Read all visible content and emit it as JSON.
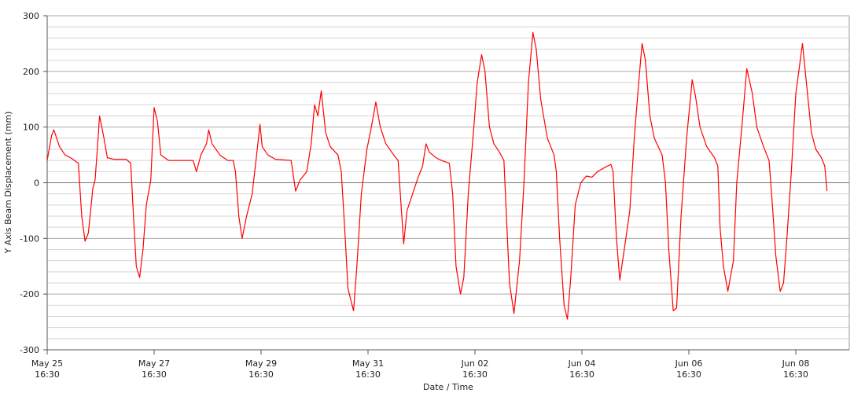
{
  "chart_data": {
    "type": "line",
    "xlabel": "Date / Time",
    "ylabel": "Y Axis Beam Displacement (mm)",
    "color": "#ff0000",
    "grid": true,
    "ylim": [
      -300,
      300
    ],
    "yticks": [
      -300,
      -200,
      -100,
      0,
      100,
      200,
      300
    ],
    "minor_yticks": [
      -280,
      -260,
      -240,
      -220,
      -180,
      -160,
      -140,
      -120,
      -80,
      -60,
      -40,
      -20,
      20,
      40,
      60,
      80,
      120,
      140,
      160,
      180,
      220,
      240,
      260,
      280
    ],
    "xlim": [
      "May 25 16:30",
      "Jun 09 16:30"
    ],
    "xticks": [
      "May 25 16:30",
      "May 27 16:30",
      "May 29 16:30",
      "May 31 16:30",
      "Jun 02 16:30",
      "Jun 04 16:30",
      "Jun 06 16:30",
      "Jun 08 16:30"
    ],
    "x": [
      "May 25 16:30",
      "May 25 18:30",
      "May 25 19:30",
      "May 25 22:00",
      "May 26 00:30",
      "May 26 03:00",
      "May 26 06:30",
      "May 26 08:00",
      "May 26 09:30",
      "May 26 11:00",
      "May 26 13:00",
      "May 26 14:00",
      "May 26 15:00",
      "May 26 16:00",
      "May 26 18:00",
      "May 26 19:30",
      "May 26 22:30",
      "May 27 04:00",
      "May 27 06:00",
      "May 27 07:30",
      "May 27 08:30",
      "May 27 10:00",
      "May 27 11:30",
      "May 27 13:00",
      "May 27 15:00",
      "May 27 16:30",
      "May 27 18:00",
      "May 27 19:30",
      "May 27 23:00",
      "May 28 10:00",
      "May 28 11:30",
      "May 28 13:30",
      "May 28 16:00",
      "May 28 17:00",
      "May 28 18:30",
      "May 28 22:00",
      "May 29 01:30",
      "May 29 04:00",
      "May 29 05:00",
      "May 29 06:30",
      "May 29 08:00",
      "May 29 10:00",
      "May 29 12:30",
      "May 29 14:30",
      "May 29 16:00",
      "May 29 17:00",
      "May 29 19:30",
      "May 29 23:00",
      "May 30 06:00",
      "May 30 08:00",
      "May 30 10:00",
      "May 30 13:00",
      "May 30 15:00",
      "May 30 16:30",
      "May 30 18:00",
      "May 30 19:30",
      "May 30 21:30",
      "May 30 23:30",
      "May 31 03:00",
      "May 31 04:30",
      "May 31 06:00",
      "May 31 07:30",
      "May 31 10:00",
      "May 31 11:30",
      "May 31 13:30",
      "May 31 16:00",
      "May 31 18:00",
      "May 31 20:00",
      "May 31 22:00",
      "Jun 01 00:30",
      "Jun 01 04:00",
      "Jun 01 06:00",
      "Jun 01 07:30",
      "Jun 01 08:30",
      "Jun 01 10:00",
      "Jun 01 12:30",
      "Jun 01 15:00",
      "Jun 01 17:00",
      "Jun 01 18:30",
      "Jun 01 20:00",
      "Jun 01 23:00",
      "Jun 02 01:30",
      "Jun 02 05:00",
      "Jun 02 06:30",
      "Jun 02 08:00",
      "Jun 02 10:00",
      "Jun 02 11:30",
      "Jun 02 13:30",
      "Jun 02 16:00",
      "Jun 02 17:30",
      "Jun 02 19:30",
      "Jun 02 21:00",
      "Jun 02 23:00",
      "Jun 03 01:00",
      "Jun 03 03:30",
      "Jun 03 05:30",
      "Jun 03 06:30",
      "Jun 03 08:00",
      "Jun 03 10:00",
      "Jun 03 12:30",
      "Jun 03 14:30",
      "Jun 03 16:30",
      "Jun 03 18:30",
      "Jun 03 20:00",
      "Jun 03 22:00",
      "Jun 04 01:00",
      "Jun 04 04:00",
      "Jun 04 05:00",
      "Jun 04 06:30",
      "Jun 04 08:30",
      "Jun 04 10:00",
      "Jun 04 11:30",
      "Jun 04 13:30",
      "Jun 04 16:00",
      "Jun 04 18:30",
      "Jun 04 21:00",
      "Jun 04 23:30",
      "Jun 05 03:00",
      "Jun 05 05:30",
      "Jun 05 06:30",
      "Jun 05 08:00",
      "Jun 05 09:30",
      "Jun 05 11:30",
      "Jun 05 14:00",
      "Jun 05 16:00",
      "Jun 05 18:00",
      "Jun 05 19:30",
      "Jun 05 21:00",
      "Jun 05 23:00",
      "Jun 06 01:00",
      "Jun 06 04:30",
      "Jun 06 06:00",
      "Jun 06 07:30",
      "Jun 06 09:30",
      "Jun 06 11:00",
      "Jun 06 13:00",
      "Jun 06 15:30",
      "Jun 06 18:00",
      "Jun 06 19:30",
      "Jun 06 21:30",
      "Jun 07 00:30",
      "Jun 07 04:00",
      "Jun 07 05:30",
      "Jun 07 06:30",
      "Jun 07 08:00",
      "Jun 07 10:00",
      "Jun 07 12:30",
      "Jun 07 14:00",
      "Jun 07 16:30",
      "Jun 07 18:30",
      "Jun 07 21:00",
      "Jun 07 23:00",
      "Jun 08 02:00",
      "Jun 08 04:30",
      "Jun 08 06:00",
      "Jun 08 07:30",
      "Jun 08 09:30",
      "Jun 08 11:00",
      "Jun 08 12:30",
      "Jun 08 14:30",
      "Jun 08 16:30",
      "Jun 08 19:30",
      "Jun 08 21:30",
      "Jun 08 23:30",
      "Jun 09 01:30",
      "Jun 09 04:00",
      "Jun 09 05:30",
      "Jun 09 06:30"
    ],
    "values": [
      40,
      85,
      95,
      65,
      50,
      45,
      35,
      -60,
      -105,
      -90,
      -10,
      5,
      60,
      120,
      80,
      45,
      42,
      42,
      35,
      -80,
      -150,
      -170,
      -120,
      -40,
      5,
      135,
      110,
      50,
      40,
      40,
      20,
      50,
      70,
      95,
      70,
      50,
      40,
      40,
      20,
      -60,
      -100,
      -60,
      -20,
      50,
      105,
      65,
      50,
      42,
      40,
      -15,
      5,
      20,
      70,
      140,
      120,
      165,
      90,
      65,
      50,
      20,
      -80,
      -190,
      -230,
      -150,
      -20,
      60,
      100,
      145,
      100,
      70,
      50,
      40,
      -50,
      -110,
      -50,
      -20,
      10,
      30,
      70,
      55,
      45,
      40,
      35,
      -20,
      -150,
      -200,
      -170,
      -20,
      100,
      180,
      230,
      200,
      100,
      70,
      55,
      40,
      -50,
      -180,
      -235,
      -140,
      0,
      180,
      270,
      240,
      150,
      80,
      50,
      20,
      -100,
      -220,
      -245,
      -170,
      -40,
      0,
      12,
      10,
      20,
      28,
      33,
      20,
      -100,
      -175,
      -120,
      -50,
      80,
      180,
      250,
      220,
      120,
      80,
      50,
      0,
      -120,
      -230,
      -225,
      -60,
      80,
      185,
      155,
      100,
      65,
      45,
      30,
      -80,
      -150,
      -195,
      -140,
      0,
      110,
      205,
      160,
      100,
      65,
      40,
      -40,
      -130,
      -195,
      -180,
      -100,
      20,
      160,
      250,
      170,
      90,
      60,
      45,
      30,
      -15
    ]
  }
}
